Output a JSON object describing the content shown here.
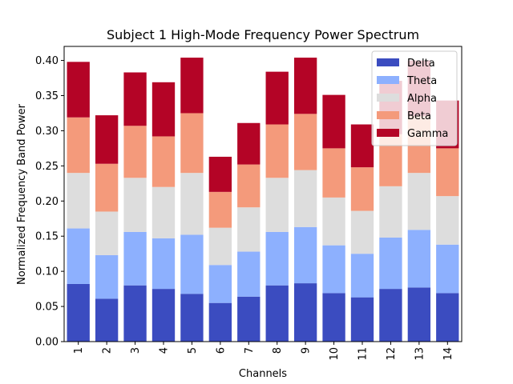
{
  "chart_data": {
    "type": "bar",
    "stacked": true,
    "title": "Subject 1 High-Mode Frequency Power Spectrum",
    "xlabel": "Channels",
    "ylabel": "Normalized Frequency Band Power",
    "categories": [
      "1",
      "2",
      "3",
      "4",
      "5",
      "6",
      "7",
      "8",
      "9",
      "10",
      "11",
      "12",
      "13",
      "14"
    ],
    "ylim": [
      0,
      0.42
    ],
    "yticks": [
      "0.00",
      "0.05",
      "0.10",
      "0.15",
      "0.20",
      "0.25",
      "0.30",
      "0.35",
      "0.40"
    ],
    "legend_position": "top-right",
    "series": [
      {
        "name": "Delta",
        "color": "#3b4cc0",
        "values": [
          0.082,
          0.061,
          0.08,
          0.075,
          0.068,
          0.055,
          0.064,
          0.08,
          0.083,
          0.069,
          0.063,
          0.075,
          0.077,
          0.069
        ]
      },
      {
        "name": "Theta",
        "color": "#8db0fe",
        "values": [
          0.079,
          0.062,
          0.076,
          0.072,
          0.084,
          0.054,
          0.064,
          0.076,
          0.08,
          0.068,
          0.062,
          0.073,
          0.082,
          0.069
        ]
      },
      {
        "name": "Alpha",
        "color": "#dddddd",
        "values": [
          0.079,
          0.062,
          0.077,
          0.073,
          0.088,
          0.053,
          0.063,
          0.077,
          0.081,
          0.068,
          0.061,
          0.073,
          0.081,
          0.069
        ]
      },
      {
        "name": "Beta",
        "color": "#f49a7b",
        "values": [
          0.079,
          0.068,
          0.074,
          0.072,
          0.085,
          0.051,
          0.061,
          0.076,
          0.08,
          0.07,
          0.062,
          0.074,
          0.081,
          0.068
        ]
      },
      {
        "name": "Gamma",
        "color": "#b40426",
        "values": [
          0.079,
          0.069,
          0.076,
          0.077,
          0.079,
          0.05,
          0.059,
          0.075,
          0.08,
          0.076,
          0.061,
          0.076,
          0.079,
          0.068
        ]
      }
    ]
  }
}
